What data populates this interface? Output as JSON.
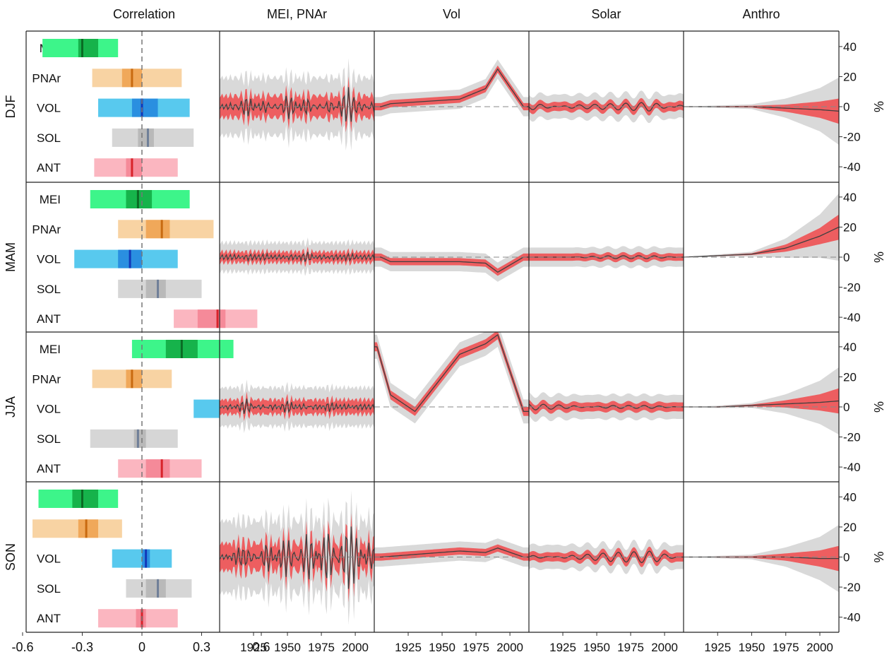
{
  "figure": {
    "column_titles": [
      "Correlation",
      "MEI, PNAr",
      "Vol",
      "Solar",
      "Anthro"
    ],
    "seasons": [
      "DJF",
      "MAM",
      "JJA",
      "SON"
    ],
    "factors": [
      "MEI",
      "PNAr",
      "VOL",
      "SOL",
      "ANT"
    ],
    "corr_ticks": [
      "-0.6",
      "-0.3",
      "0",
      "0.3",
      "0.6"
    ],
    "year_ticks": [
      "1925",
      "1950",
      "1975",
      "2000"
    ],
    "pct_ticks": [
      "40",
      "20",
      "0",
      "-20",
      "-40"
    ],
    "pct_unit": "%",
    "colors": {
      "MEI": {
        "light": "#3df58a",
        "mid": "#16b34b",
        "dark": "#0a6b24"
      },
      "PNAr": {
        "light": "#f8d3a3",
        "mid": "#f0a85a",
        "dark": "#c86a10"
      },
      "VOL": {
        "light": "#58c9ee",
        "mid": "#2a8fe0",
        "dark": "#1238b8"
      },
      "SOL": {
        "light": "#d6d6d6",
        "mid": "#b9b9b9",
        "dark": "#6f7f98"
      },
      "ANT": {
        "light": "#fbb6c0",
        "mid": "#f58a99",
        "dark": "#d8232a"
      },
      "band_outer": "#d9d9d9",
      "band_inner": "#f0484a",
      "line": "#404040"
    }
  },
  "chart_data": [
    {
      "type": "bar",
      "panel": "Correlation",
      "xlim": [
        -0.6,
        0.6
      ],
      "xticks": [
        -0.6,
        -0.3,
        0,
        0.3,
        0.6
      ],
      "note": "per factor: [outer_low, inner_low, median, inner_high, outer_high] correlation",
      "DJF": {
        "MEI": [
          -0.5,
          -0.32,
          -0.3,
          -0.22,
          -0.12
        ],
        "PNAr": [
          -0.25,
          -0.1,
          -0.05,
          0.0,
          0.2
        ],
        "VOL": [
          -0.22,
          -0.05,
          0.0,
          0.08,
          0.24
        ],
        "SOL": [
          -0.15,
          -0.02,
          0.03,
          0.06,
          0.26
        ],
        "ANT": [
          -0.24,
          -0.08,
          -0.05,
          0.0,
          0.18
        ]
      },
      "MAM": {
        "MEI": [
          -0.26,
          -0.08,
          -0.02,
          0.05,
          0.24
        ],
        "PNAr": [
          -0.12,
          0.02,
          0.1,
          0.14,
          0.36
        ],
        "VOL": [
          -0.34,
          -0.12,
          -0.06,
          0.0,
          0.18
        ],
        "SOL": [
          -0.12,
          0.02,
          0.08,
          0.12,
          0.3
        ],
        "ANT": [
          0.16,
          0.28,
          0.38,
          0.42,
          0.58
        ]
      },
      "JJA": {
        "MEI": [
          -0.05,
          0.12,
          0.2,
          0.28,
          0.46
        ],
        "PNAr": [
          -0.25,
          -0.08,
          -0.05,
          0.0,
          0.15
        ],
        "VOL": [
          0.26,
          0.42,
          0.48,
          0.52,
          0.66
        ],
        "SOL": [
          -0.26,
          -0.04,
          -0.02,
          0.02,
          0.18
        ],
        "ANT": [
          -0.12,
          0.02,
          0.1,
          0.14,
          0.3
        ]
      },
      "SON": {
        "MEI": [
          -0.52,
          -0.35,
          -0.3,
          -0.22,
          -0.12
        ],
        "PNAr": [
          -0.55,
          -0.32,
          -0.28,
          -0.22,
          -0.1
        ],
        "VOL": [
          -0.15,
          0.0,
          0.02,
          0.04,
          0.15
        ],
        "SOL": [
          -0.08,
          0.02,
          0.08,
          0.12,
          0.25
        ],
        "ANT": [
          -0.22,
          -0.03,
          0.0,
          0.02,
          0.18
        ]
      }
    },
    {
      "type": "area",
      "panels": [
        "MEI, PNAr",
        "Vol",
        "Solar",
        "Anthro"
      ],
      "x_range": [
        1900,
        2014
      ],
      "ylim": [
        -50,
        50
      ],
      "yticks": [
        40,
        20,
        0,
        -20,
        -40
      ],
      "ylabel": "%",
      "note": "median component time series (%) with shaded uncertainty; values are approximate",
      "series": [
        {
          "name": "MEI, PNAr",
          "season": "DJF",
          "x": [
            1905,
            1920,
            1935,
            1950,
            1965,
            1980,
            1995,
            2010
          ],
          "y": [
            0,
            6,
            -5,
            8,
            -6,
            5,
            -12,
            3
          ],
          "band": 12
        },
        {
          "name": "MEI, PNAr",
          "season": "MAM",
          "x": [
            1905,
            1920,
            1935,
            1950,
            1965,
            1980,
            1995,
            2010
          ],
          "y": [
            0,
            1,
            -1,
            1,
            -2,
            1,
            -1,
            0
          ],
          "band": 6
        },
        {
          "name": "MEI, PNAr",
          "season": "JJA",
          "x": [
            1905,
            1920,
            1935,
            1950,
            1965,
            1980,
            1995,
            2010
          ],
          "y": [
            1,
            -4,
            2,
            -3,
            2,
            -2,
            1,
            0
          ],
          "band": 8
        },
        {
          "name": "MEI, PNAr",
          "season": "SON",
          "x": [
            1905,
            1920,
            1935,
            1950,
            1965,
            1980,
            1995,
            2010
          ],
          "y": [
            0,
            8,
            -10,
            15,
            -18,
            20,
            -25,
            8
          ],
          "band": 15
        },
        {
          "name": "Vol",
          "season": "DJF",
          "x": [
            1905,
            1912,
            1963,
            1982,
            1991,
            2010
          ],
          "y": [
            0,
            2,
            5,
            12,
            25,
            0
          ],
          "band": 4
        },
        {
          "name": "Vol",
          "season": "MAM",
          "x": [
            1905,
            1912,
            1963,
            1982,
            1991,
            2010
          ],
          "y": [
            0,
            -3,
            -3,
            -4,
            -10,
            0
          ],
          "band": 4
        },
        {
          "name": "Vol",
          "season": "JJA",
          "x": [
            1902,
            1912,
            1930,
            1963,
            1982,
            1991,
            2010
          ],
          "y": [
            40,
            8,
            -3,
            35,
            42,
            48,
            -3
          ],
          "band": 5
        },
        {
          "name": "Vol",
          "season": "SON",
          "x": [
            1905,
            1963,
            1982,
            1991,
            2010
          ],
          "y": [
            0,
            4,
            3,
            6,
            0
          ],
          "band": 4
        },
        {
          "name": "Solar",
          "season": "DJF",
          "x": [
            1905,
            1930,
            1960,
            1990,
            2010
          ],
          "y": [
            -2,
            1,
            2,
            3,
            -1
          ],
          "band": 5
        },
        {
          "name": "Solar",
          "season": "MAM",
          "x": [
            1905,
            1930,
            1960,
            1990,
            2010
          ],
          "y": [
            0,
            0,
            1,
            1,
            0
          ],
          "band": 4
        },
        {
          "name": "Solar",
          "season": "JJA",
          "x": [
            1905,
            1930,
            1960,
            1990,
            2010
          ],
          "y": [
            2,
            1,
            -1,
            -1,
            0
          ],
          "band": 5
        },
        {
          "name": "Solar",
          "season": "SON",
          "x": [
            1905,
            1930,
            1960,
            1990,
            2010
          ],
          "y": [
            -1,
            1,
            3,
            4,
            0
          ],
          "band": 5
        },
        {
          "name": "Anthro",
          "season": "DJF",
          "x": [
            1900,
            1925,
            1950,
            1975,
            2000,
            2014
          ],
          "y": [
            0,
            0,
            0,
            -1,
            -2,
            -3
          ],
          "band": [
            0,
            0.5,
            1,
            4,
            9,
            14
          ]
        },
        {
          "name": "Anthro",
          "season": "MAM",
          "x": [
            1900,
            1925,
            1950,
            1975,
            2000,
            2014
          ],
          "y": [
            0,
            1,
            2,
            6,
            14,
            20
          ],
          "band": [
            0,
            0.5,
            1,
            4,
            9,
            14
          ]
        },
        {
          "name": "Anthro",
          "season": "JJA",
          "x": [
            1900,
            1925,
            1950,
            1975,
            2000,
            2014
          ],
          "y": [
            0,
            0,
            1,
            2,
            3,
            4
          ],
          "band": [
            0,
            0.5,
            1,
            4,
            9,
            14
          ]
        },
        {
          "name": "Anthro",
          "season": "SON",
          "x": [
            1900,
            1925,
            1950,
            1975,
            2000,
            2014
          ],
          "y": [
            0,
            0,
            0,
            0,
            -1,
            -1
          ],
          "band": [
            0,
            0.5,
            1,
            4,
            9,
            14
          ]
        }
      ]
    }
  ]
}
